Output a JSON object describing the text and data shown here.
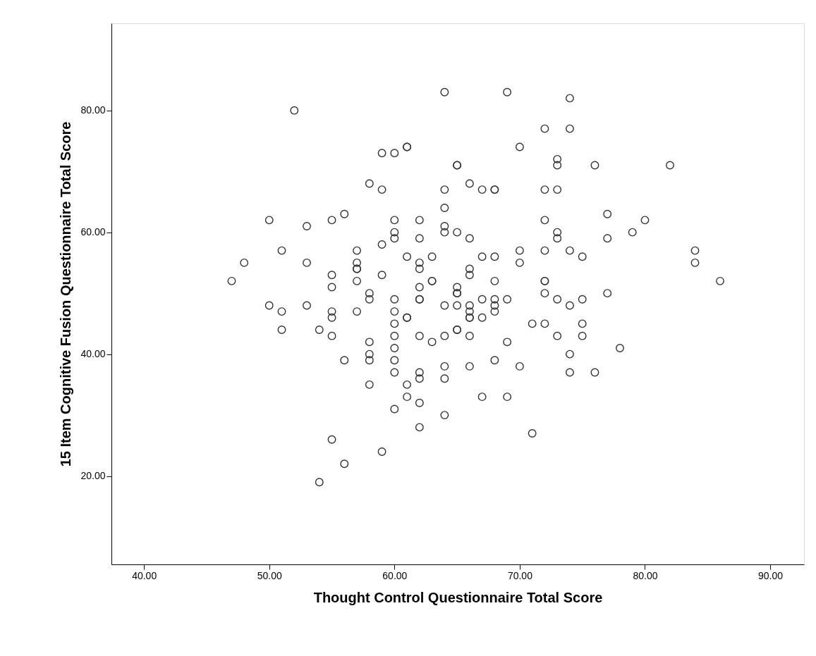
{
  "chart_data": {
    "type": "scatter",
    "xlabel": "Thought Control Questionnaire Total Score",
    "ylabel": "15 Item Cognitive Fusion Questionnaire Total Score",
    "xlim": [
      37.4,
      92.7
    ],
    "ylim": [
      5.5,
      94.3
    ],
    "xticks": [
      {
        "value": 40,
        "label": "40.00"
      },
      {
        "value": 50,
        "label": "50.00"
      },
      {
        "value": 60,
        "label": "60.00"
      },
      {
        "value": 70,
        "label": "70.00"
      },
      {
        "value": 80,
        "label": "80.00"
      },
      {
        "value": 90,
        "label": "90.00"
      }
    ],
    "yticks": [
      {
        "value": 20,
        "label": "20.00"
      },
      {
        "value": 40,
        "label": "40.00"
      },
      {
        "value": 60,
        "label": "60.00"
      },
      {
        "value": 80,
        "label": "80.00"
      }
    ],
    "grid": false,
    "marker": "circle",
    "series": [
      {
        "color": "#333333",
        "x": [
          47,
          48,
          50,
          50,
          51,
          51,
          51,
          52,
          53,
          53,
          53,
          54,
          54,
          55,
          55,
          55,
          55,
          55,
          55,
          55,
          56,
          56,
          56,
          57,
          57,
          57,
          57,
          57,
          57,
          58,
          58,
          58,
          58,
          58,
          58,
          58,
          59,
          59,
          59,
          59,
          59,
          60,
          60,
          60,
          60,
          60,
          60,
          60,
          60,
          60,
          60,
          60,
          60,
          61,
          61,
          61,
          61,
          61,
          61,
          61,
          62,
          62,
          62,
          62,
          62,
          62,
          62,
          62,
          62,
          62,
          62,
          62,
          63,
          63,
          63,
          63,
          64,
          64,
          64,
          64,
          64,
          64,
          64,
          64,
          64,
          64,
          65,
          65,
          65,
          65,
          65,
          65,
          65,
          65,
          65,
          66,
          66,
          66,
          66,
          66,
          66,
          66,
          66,
          66,
          66,
          67,
          67,
          67,
          67,
          67,
          68,
          68,
          68,
          68,
          68,
          68,
          68,
          68,
          69,
          69,
          69,
          69,
          70,
          70,
          70,
          70,
          71,
          71,
          72,
          72,
          72,
          72,
          72,
          72,
          72,
          72,
          73,
          73,
          73,
          73,
          73,
          73,
          73,
          74,
          74,
          74,
          74,
          74,
          74,
          75,
          75,
          75,
          75,
          76,
          76,
          77,
          77,
          77,
          78,
          79,
          80,
          82,
          84,
          84,
          86
        ],
        "values": [
          52,
          55,
          62,
          48,
          57,
          47,
          44,
          80,
          61,
          55,
          48,
          44,
          19,
          62,
          53,
          51,
          47,
          46,
          43,
          26,
          63,
          39,
          22,
          57,
          55,
          54,
          54,
          52,
          47,
          68,
          50,
          49,
          42,
          40,
          39,
          35,
          73,
          67,
          58,
          53,
          24,
          73,
          62,
          60,
          59,
          49,
          47,
          45,
          43,
          41,
          39,
          37,
          31,
          74,
          74,
          56,
          46,
          46,
          35,
          33,
          62,
          59,
          55,
          54,
          51,
          49,
          49,
          43,
          37,
          36,
          32,
          28,
          56,
          52,
          52,
          42,
          83,
          67,
          64,
          61,
          60,
          48,
          43,
          38,
          36,
          30,
          71,
          71,
          60,
          51,
          50,
          50,
          48,
          44,
          44,
          68,
          59,
          54,
          53,
          48,
          47,
          46,
          46,
          43,
          38,
          67,
          56,
          49,
          46,
          33,
          67,
          67,
          56,
          52,
          49,
          48,
          47,
          39,
          83,
          49,
          42,
          33,
          74,
          57,
          55,
          38,
          45,
          27,
          77,
          67,
          62,
          57,
          52,
          52,
          50,
          45,
          72,
          71,
          67,
          60,
          59,
          49,
          43,
          82,
          77,
          57,
          48,
          40,
          37,
          56,
          49,
          45,
          43,
          71,
          37,
          63,
          59,
          50,
          41,
          60,
          62,
          71,
          57,
          55,
          52
        ]
      }
    ]
  }
}
